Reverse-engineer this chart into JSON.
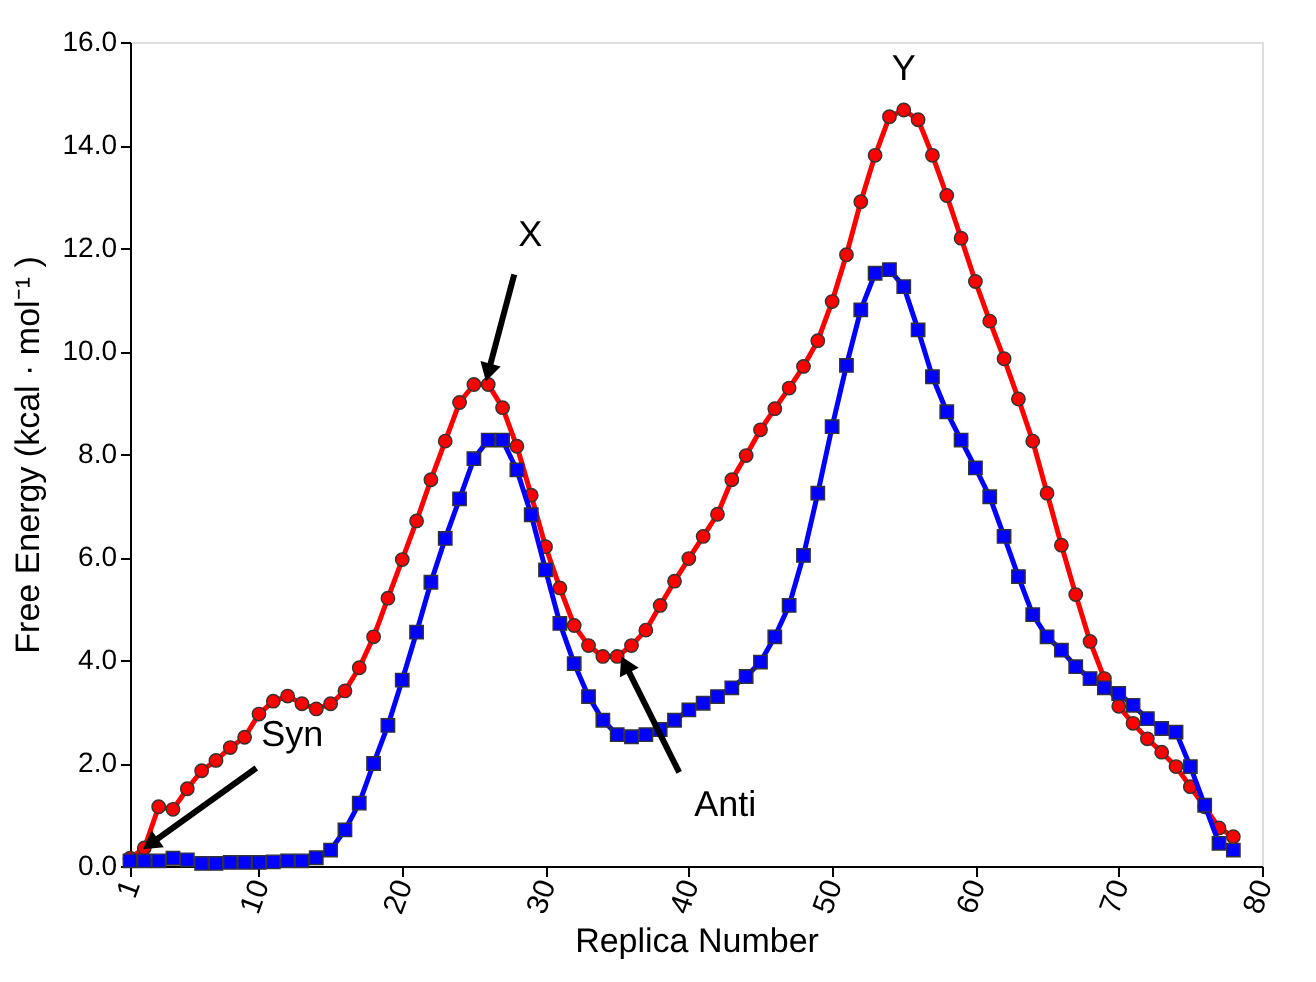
{
  "chart_data": {
    "type": "line",
    "xlabel": "Replica Number",
    "ylabel": "Free Energy (kcal · mol⁻¹ )",
    "x": [
      1,
      2,
      3,
      4,
      5,
      6,
      7,
      8,
      9,
      10,
      11,
      12,
      13,
      14,
      15,
      16,
      17,
      18,
      19,
      20,
      21,
      22,
      23,
      24,
      25,
      26,
      27,
      28,
      29,
      30,
      31,
      32,
      33,
      34,
      35,
      36,
      37,
      38,
      39,
      40,
      41,
      42,
      43,
      44,
      45,
      46,
      47,
      48,
      49,
      50,
      51,
      52,
      53,
      54,
      55,
      56,
      57,
      58,
      59,
      60,
      61,
      62,
      63,
      64,
      65,
      66,
      67,
      68,
      69,
      70,
      71,
      72,
      73,
      74,
      75,
      76,
      77,
      78
    ],
    "series": [
      {
        "color": "#ff0000",
        "marker": "circle",
        "values": [
          0.15,
          0.35,
          1.15,
          1.1,
          1.5,
          1.85,
          2.05,
          2.3,
          2.5,
          2.95,
          3.2,
          3.3,
          3.15,
          3.05,
          3.15,
          3.4,
          3.85,
          4.45,
          5.2,
          5.95,
          6.7,
          7.5,
          8.25,
          9.0,
          9.35,
          9.35,
          8.9,
          8.15,
          7.2,
          6.2,
          5.4,
          4.67,
          4.28,
          4.07,
          4.07,
          4.28,
          4.58,
          5.06,
          5.53,
          5.97,
          6.4,
          6.83,
          7.5,
          7.97,
          8.47,
          8.88,
          9.28,
          9.7,
          10.2,
          10.96,
          11.87,
          12.9,
          13.8,
          14.55,
          14.68,
          14.49,
          13.8,
          13.02,
          12.19,
          11.35,
          10.58,
          9.85,
          9.07,
          8.25,
          7.24,
          6.23,
          5.27,
          4.36,
          3.64,
          3.1,
          2.77,
          2.47,
          2.21,
          1.93,
          1.54,
          1.15,
          0.74,
          0.57
        ]
      },
      {
        "color": "#0000ff",
        "marker": "square",
        "values": [
          0.1,
          0.1,
          0.1,
          0.15,
          0.12,
          0.05,
          0.05,
          0.07,
          0.07,
          0.07,
          0.08,
          0.1,
          0.1,
          0.16,
          0.31,
          0.7,
          1.22,
          1.99,
          2.73,
          3.61,
          4.54,
          5.51,
          6.36,
          7.13,
          7.91,
          8.27,
          8.27,
          7.69,
          6.82,
          5.75,
          4.71,
          3.93,
          3.29,
          2.83,
          2.55,
          2.51,
          2.55,
          2.65,
          2.83,
          3.03,
          3.16,
          3.29,
          3.46,
          3.68,
          3.96,
          4.45,
          5.06,
          6.03,
          7.24,
          8.53,
          9.72,
          10.8,
          11.51,
          11.58,
          11.25,
          10.41,
          9.5,
          8.82,
          8.27,
          7.73,
          7.17,
          6.4,
          5.62,
          4.88,
          4.45,
          4.19,
          3.87,
          3.64,
          3.46,
          3.35,
          3.12,
          2.86,
          2.67,
          2.6,
          1.93,
          1.18,
          0.44,
          0.31
        ]
      }
    ],
    "xlim": [
      1,
      80
    ],
    "xticks": [
      1,
      10,
      20,
      30,
      40,
      50,
      60,
      70,
      80
    ],
    "ylim": [
      0,
      16
    ],
    "yticks": [
      {
        "value": 0,
        "label": "0.0"
      },
      {
        "value": 2,
        "label": "2.0"
      },
      {
        "value": 4,
        "label": "4.0"
      },
      {
        "value": 6,
        "label": "6.0"
      },
      {
        "value": 8,
        "label": "8.0"
      },
      {
        "value": 10,
        "label": "10.0"
      },
      {
        "value": 12,
        "label": "12.0"
      },
      {
        "value": 14,
        "label": "14.0"
      },
      {
        "value": 16,
        "label": "16.0"
      }
    ],
    "grid": false,
    "line_style": "solid",
    "annotations": [
      {
        "text": "X",
        "x": 26,
        "y": 9.35
      },
      {
        "text": "Y",
        "x": 55,
        "y": 14.68
      },
      {
        "text": "Syn",
        "x": 2,
        "y": 0.35
      },
      {
        "text": "Anti",
        "x": 35,
        "y": 4.07
      }
    ]
  }
}
